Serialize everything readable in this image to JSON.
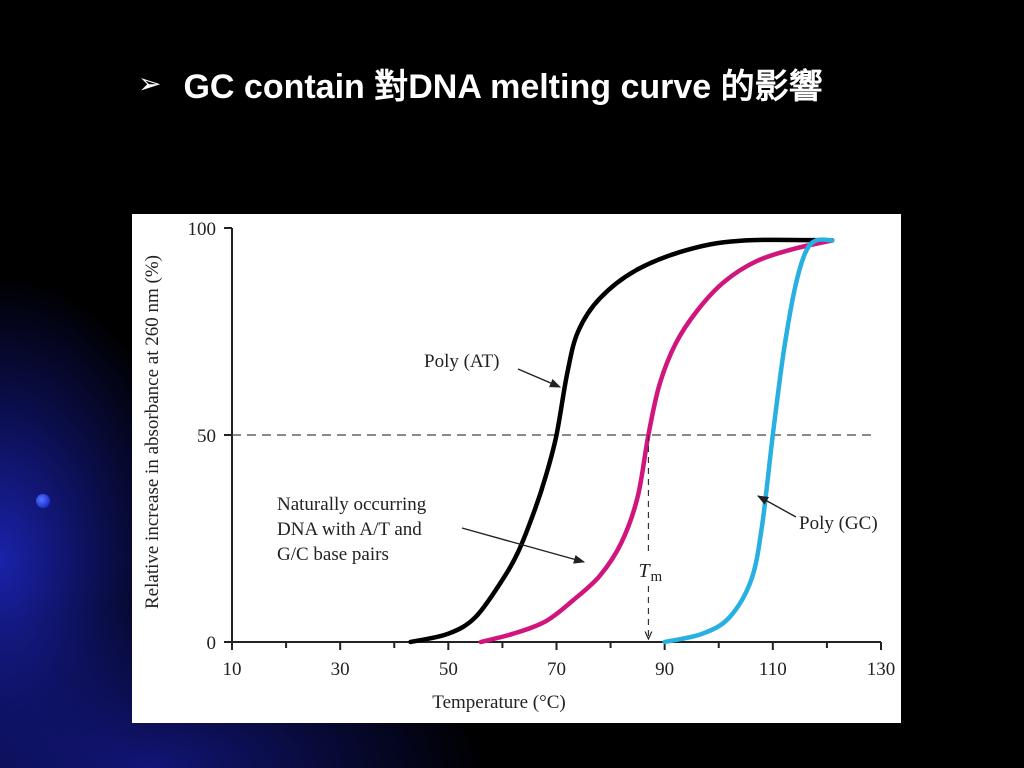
{
  "slide": {
    "bullet": "➢",
    "title": "GC contain 對DNA melting curve 的影響"
  },
  "chart_data": {
    "type": "line",
    "xlabel": "Temperature (°C)",
    "ylabel": "Relative increase in absorbance at 260 nm (%)",
    "xlim": [
      10,
      130
    ],
    "ylim": [
      0,
      100
    ],
    "xticks": [
      10,
      30,
      50,
      70,
      90,
      110,
      130
    ],
    "yticks": [
      0,
      50,
      100
    ],
    "reference_line": {
      "y": 50,
      "style": "dashed"
    },
    "series": [
      {
        "name": "Poly (AT)",
        "color": "#000000",
        "points": [
          [
            43,
            0
          ],
          [
            50,
            2
          ],
          [
            55,
            6
          ],
          [
            60,
            15
          ],
          [
            63,
            22
          ],
          [
            66,
            32
          ],
          [
            68,
            40
          ],
          [
            70,
            50
          ],
          [
            72,
            65
          ],
          [
            74,
            75
          ],
          [
            78,
            83
          ],
          [
            85,
            90
          ],
          [
            95,
            95
          ],
          [
            105,
            97
          ],
          [
            121,
            97
          ]
        ]
      },
      {
        "name": "Naturally occurring DNA with A/T and G/C base pairs",
        "color": "#d0167c",
        "points": [
          [
            56,
            0
          ],
          [
            62,
            2
          ],
          [
            68,
            5
          ],
          [
            73,
            10
          ],
          [
            78,
            16
          ],
          [
            82,
            24
          ],
          [
            85,
            35
          ],
          [
            87,
            50
          ],
          [
            89,
            62
          ],
          [
            92,
            72
          ],
          [
            96,
            80
          ],
          [
            101,
            87
          ],
          [
            107,
            92
          ],
          [
            114,
            95
          ],
          [
            121,
            97
          ]
        ]
      },
      {
        "name": "Poly (GC)",
        "color": "#28b0e0",
        "points": [
          [
            90,
            0
          ],
          [
            97,
            2
          ],
          [
            102,
            6
          ],
          [
            106,
            15
          ],
          [
            108,
            28
          ],
          [
            110,
            50
          ],
          [
            112,
            70
          ],
          [
            114,
            85
          ],
          [
            116,
            94
          ],
          [
            118,
            97
          ],
          [
            121,
            97
          ]
        ]
      }
    ],
    "annotations": [
      {
        "text": "Poly (AT)"
      },
      {
        "lines": [
          "Naturally occurring",
          "DNA with A/T and",
          "G/C base pairs"
        ]
      },
      {
        "text": "Poly (GC)"
      },
      {
        "text": "T",
        "subscript": "m",
        "x": 87
      }
    ]
  }
}
